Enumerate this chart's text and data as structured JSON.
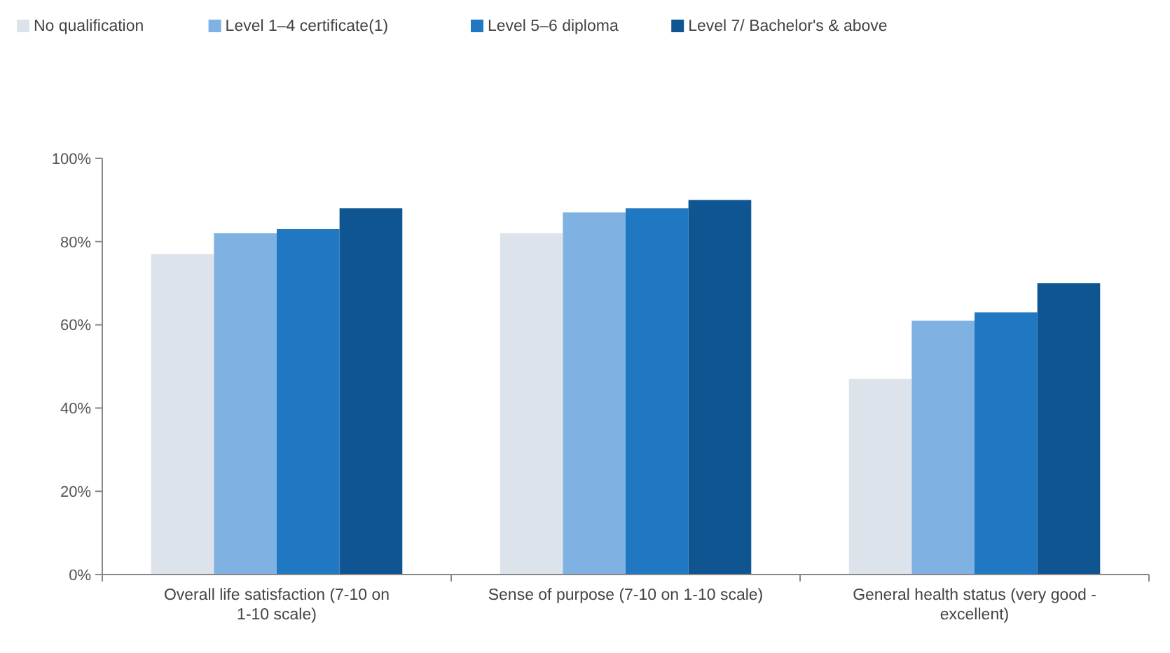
{
  "chart_data": {
    "type": "bar",
    "categories": [
      "Overall life satisfaction (7-10 on 1-10 scale)",
      "Sense of purpose (7-10 on 1-10 scale)",
      "General health status (very good - excellent)"
    ],
    "series": [
      {
        "name": "No qualification",
        "color": "#dde3ea",
        "values": [
          77,
          82,
          47
        ]
      },
      {
        "name": "Level 1–4 certificate(1)",
        "color": "#7fb2e2",
        "values": [
          82,
          87,
          61
        ]
      },
      {
        "name": "Level 5–6 diploma",
        "color": "#1f78c1",
        "values": [
          83,
          88,
          63
        ]
      },
      {
        "name": "Level 7/ Bachelor's & above",
        "color": "#0f5591",
        "values": [
          88,
          90,
          70
        ]
      }
    ],
    "ylim": [
      0,
      100
    ],
    "yticks": [
      {
        "value": 0,
        "label": "0%"
      },
      {
        "value": 20,
        "label": "20%"
      },
      {
        "value": 40,
        "label": "40%"
      },
      {
        "value": 60,
        "label": "60%"
      },
      {
        "value": 80,
        "label": "80%"
      },
      {
        "value": 100,
        "label": "100%"
      }
    ],
    "grid": false,
    "legend": "top left"
  }
}
